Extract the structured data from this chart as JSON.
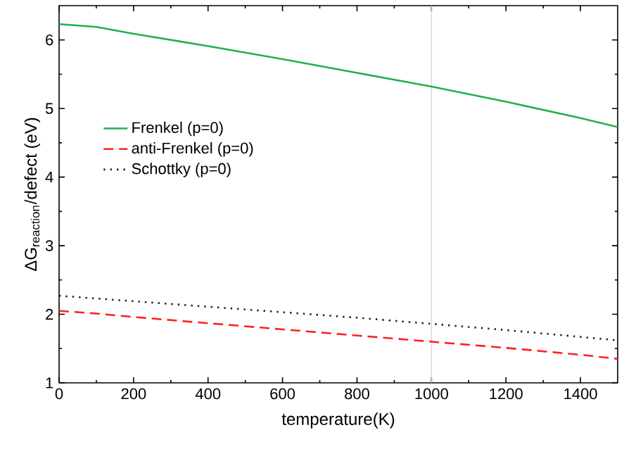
{
  "chart_data": {
    "type": "line",
    "xlabel": "temperature(K)",
    "ylabel": "ΔG$_{reaction}$/defect (eV)",
    "xlim": [
      0,
      1500
    ],
    "ylim": [
      1,
      6.5
    ],
    "xticks": [
      0,
      200,
      400,
      600,
      800,
      1000,
      1200,
      1400
    ],
    "yticks": [
      1,
      2,
      3,
      4,
      5,
      6
    ],
    "x": [
      0,
      100,
      200,
      400,
      600,
      800,
      1000,
      1200,
      1400,
      1500
    ],
    "series": [
      {
        "name": "Frenkel (p=0)",
        "color": "#22b14c",
        "line_style": "solid",
        "values": [
          6.23,
          6.19,
          6.09,
          5.91,
          5.72,
          5.52,
          5.32,
          5.1,
          4.86,
          4.73
        ]
      },
      {
        "name": "anti-Frenkel (p=0)",
        "color": "#ff2020",
        "line_style": "dashed",
        "values": [
          2.05,
          2.01,
          1.96,
          1.87,
          1.78,
          1.69,
          1.6,
          1.51,
          1.41,
          1.35
        ]
      },
      {
        "name": "Schottky (p=0)",
        "color": "#202020",
        "line_style": "dotted",
        "values": [
          2.27,
          2.23,
          2.19,
          2.11,
          2.03,
          1.95,
          1.86,
          1.77,
          1.67,
          1.62
        ]
      }
    ],
    "ref_lines": [
      {
        "axis": "x",
        "value": 1000,
        "color": "#dccccc"
      }
    ],
    "legend": "left",
    "grid": false,
    "marker": "none"
  }
}
